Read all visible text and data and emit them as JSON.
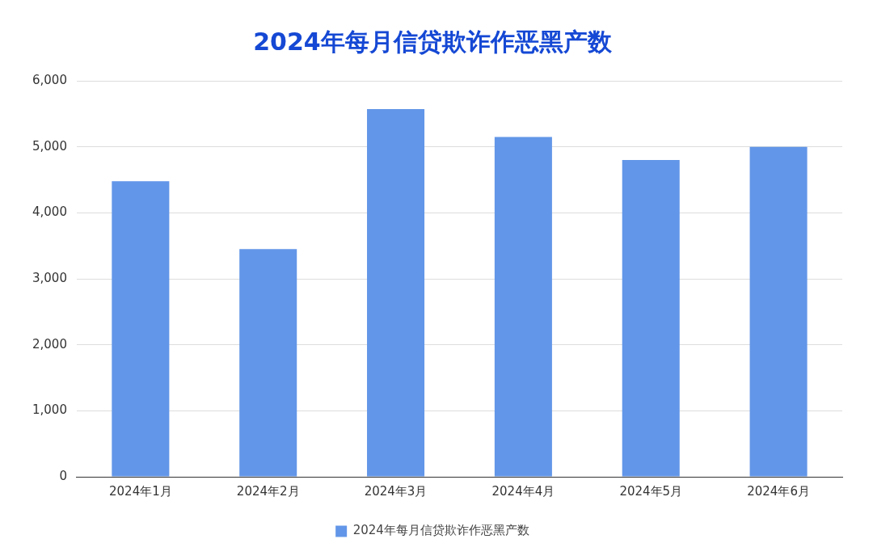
{
  "chart_data": {
    "type": "bar",
    "title": "2024年每月信贷欺诈作恶黑产数",
    "categories": [
      "2024年1月",
      "2024年2月",
      "2024年3月",
      "2024年4月",
      "2024年5月",
      "2024年6月"
    ],
    "series": [
      {
        "name": "2024年每月信贷欺诈作恶黑产数",
        "color": "#6296e8",
        "values": [
          4480,
          3450,
          5570,
          5150,
          4800,
          5000
        ]
      }
    ],
    "ylim": [
      0,
      6000
    ],
    "yticks": [
      {
        "value": 0,
        "label": "0"
      },
      {
        "value": 1000,
        "label": "1,000"
      },
      {
        "value": 2000,
        "label": "2,000"
      },
      {
        "value": 3000,
        "label": "3,000"
      },
      {
        "value": 4000,
        "label": "4,000"
      },
      {
        "value": 5000,
        "label": "5,000"
      },
      {
        "value": 6000,
        "label": "6,000"
      }
    ],
    "grid": "y",
    "legend": "bottom"
  }
}
